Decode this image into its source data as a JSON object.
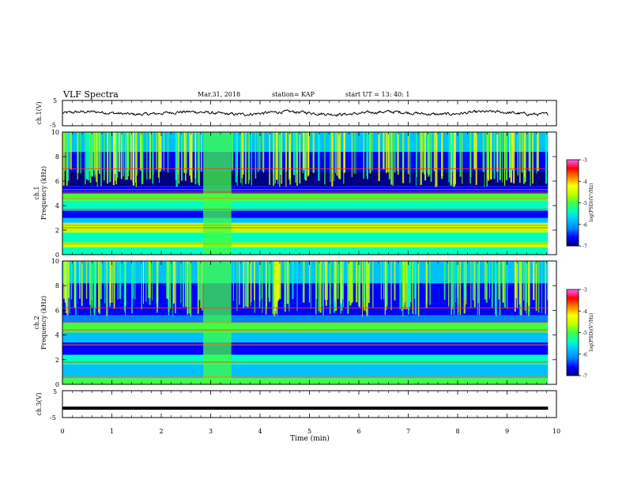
{
  "header": {
    "title": "VLF Spectra",
    "date": "Mar.31, 2018",
    "station": "station= KAP",
    "start": "start  UT  =   13: 40: 1"
  },
  "colors": {
    "background": "#ffffff",
    "axes": "#000000",
    "trace": "#000000",
    "colormap": [
      "#000080",
      "#0000ff",
      "#0080ff",
      "#00c0ff",
      "#00ffc0",
      "#40ff40",
      "#c0ff00",
      "#ffff00",
      "#ff8000",
      "#ff0000",
      "#ff60ff",
      "#ffffff"
    ]
  },
  "chart_data": [
    {
      "type": "line",
      "panel": "ch1-waveform",
      "ylabel": "ch.1(V)",
      "ylim": [
        -5,
        5
      ],
      "yticks": [
        "5",
        "-5"
      ],
      "xlim": [
        0,
        10
      ],
      "x_end": 9.83,
      "trace_description_values": "noisy waveform oscillating roughly between -1.5 and 1.5 V",
      "approx_envelope": [
        -1.5,
        1.5
      ]
    },
    {
      "type": "heatmap",
      "panel": "ch1-spectrogram",
      "ylabel_line1": "ch.1",
      "ylabel_line2": "Frequency (kHz)",
      "ylim": [
        0,
        10
      ],
      "yticks": [
        "0",
        "2",
        "4",
        "6",
        "8",
        "10"
      ],
      "xlim": [
        0,
        10
      ],
      "x_end": 9.83,
      "colorbar": {
        "label": "log(PSD)(V²/Hz)",
        "range": [
          -7,
          -3
        ],
        "ticks": [
          "-3",
          "-4",
          "-5",
          "-6",
          "-7"
        ]
      },
      "bands_kHz": [
        {
          "from": 0.0,
          "to": 0.6,
          "level": -5.2
        },
        {
          "from": 0.6,
          "to": 1.0,
          "level": -4.4
        },
        {
          "from": 1.0,
          "to": 1.8,
          "level": -5.3
        },
        {
          "from": 1.8,
          "to": 2.6,
          "level": -4.6
        },
        {
          "from": 2.6,
          "to": 3.0,
          "level": -5.5
        },
        {
          "from": 3.0,
          "to": 3.6,
          "level": -6.6
        },
        {
          "from": 3.6,
          "to": 4.4,
          "level": -5.1
        },
        {
          "from": 4.4,
          "to": 5.0,
          "level": -4.9
        },
        {
          "from": 5.0,
          "to": 5.6,
          "level": -6.3
        },
        {
          "from": 5.6,
          "to": 6.8,
          "level": -6.7
        },
        {
          "from": 6.8,
          "to": 8.4,
          "level": -6.2
        },
        {
          "from": 8.4,
          "to": 10.0,
          "level": -5.4
        }
      ],
      "lines_kHz": [
        0.9,
        2.2,
        2.4,
        3.7,
        4.6,
        5.1,
        5.3,
        7.0
      ],
      "burst_minutes": [
        2.85,
        3.42
      ],
      "burst_level": -4.8
    },
    {
      "type": "heatmap",
      "panel": "ch2-spectrogram",
      "ylabel_line1": "ch.2",
      "ylabel_line2": "Frequency (kHz)",
      "ylim": [
        0,
        10
      ],
      "yticks": [
        "0",
        "2",
        "4",
        "6",
        "8",
        "10"
      ],
      "xlim": [
        0,
        10
      ],
      "x_end": 9.83,
      "colorbar": {
        "label": "log(PSD)(V²/Hz)",
        "range": [
          -7,
          -3
        ],
        "ticks": [
          "-3",
          "-4",
          "-5",
          "-6",
          "-7"
        ]
      },
      "bands_kHz": [
        {
          "from": 0.0,
          "to": 0.5,
          "level": -5.0
        },
        {
          "from": 0.5,
          "to": 1.6,
          "level": -5.6
        },
        {
          "from": 1.6,
          "to": 2.4,
          "level": -5.3
        },
        {
          "from": 2.4,
          "to": 3.4,
          "level": -6.2
        },
        {
          "from": 3.4,
          "to": 4.2,
          "level": -5.4
        },
        {
          "from": 4.2,
          "to": 5.0,
          "level": -5.0
        },
        {
          "from": 5.0,
          "to": 5.6,
          "level": -6.0
        },
        {
          "from": 5.6,
          "to": 6.6,
          "level": -6.6
        },
        {
          "from": 6.6,
          "to": 8.2,
          "level": -6.3
        },
        {
          "from": 8.2,
          "to": 10.0,
          "level": -5.5
        }
      ],
      "lines_kHz": [
        0.6,
        1.8,
        3.2,
        4.4,
        5.0,
        6.2
      ],
      "burst_minutes": [
        2.85,
        3.42
      ],
      "burst_level": -4.7
    },
    {
      "type": "line",
      "panel": "ch3-waveform",
      "ylabel": "ch.3(V)",
      "ylim": [
        -5,
        5
      ],
      "yticks": [
        "5",
        "-5"
      ],
      "xlim": [
        0,
        10
      ],
      "x_end": 9.83,
      "constant_value": -1.5,
      "xlabel": "Time (min)",
      "xticks": [
        "0",
        "1",
        "2",
        "3",
        "4",
        "5",
        "6",
        "7",
        "8",
        "9",
        "10"
      ]
    }
  ]
}
